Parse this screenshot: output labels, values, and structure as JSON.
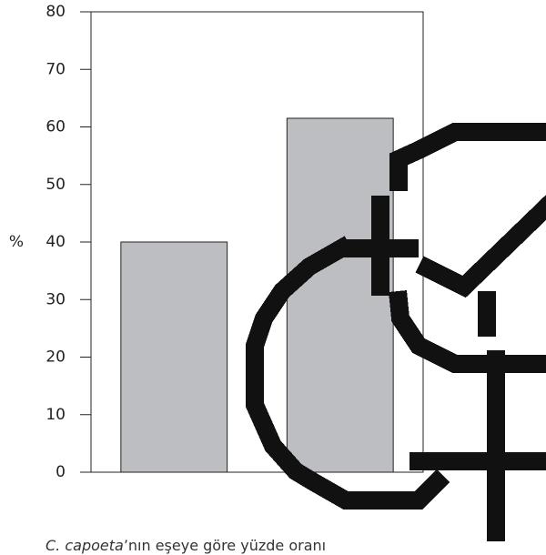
{
  "chart_data": {
    "type": "bar",
    "y_label": "%",
    "categories": [
      null,
      null
    ],
    "values": [
      40,
      61.5
    ],
    "color": "#bdbec2",
    "ylim": [
      0,
      80
    ],
    "yticks": [
      0,
      10,
      20,
      30,
      40,
      50,
      60,
      70,
      80
    ],
    "caption_species": "C. capoeta",
    "caption_rest": "’nın eşeye göre yüzde oranı"
  }
}
